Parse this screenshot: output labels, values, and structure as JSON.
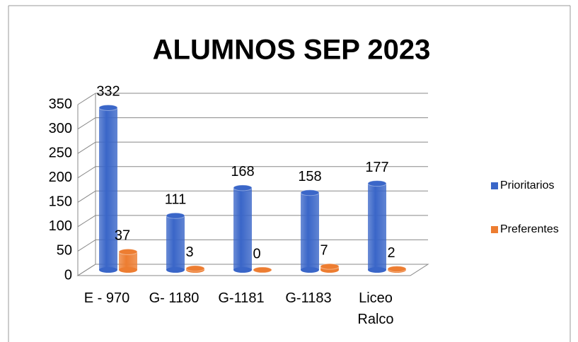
{
  "chart_data": {
    "type": "bar3d",
    "title": "ALUMNOS SEP 2023",
    "categories": [
      "E - 970",
      "G- 1180",
      "G-1181",
      "G-1183",
      "Liceo Ralco"
    ],
    "series": [
      {
        "name": "Prioritarios",
        "color": "#3a66c8",
        "values": [
          332,
          111,
          168,
          158,
          177
        ]
      },
      {
        "name": "Preferentes",
        "color": "#ed7d31",
        "values": [
          37,
          3,
          0,
          7,
          2
        ]
      }
    ],
    "ylim": [
      0,
      350
    ],
    "yticks": [
      0,
      50,
      100,
      150,
      200,
      250,
      300,
      350
    ],
    "grid": true,
    "legend": "right"
  }
}
